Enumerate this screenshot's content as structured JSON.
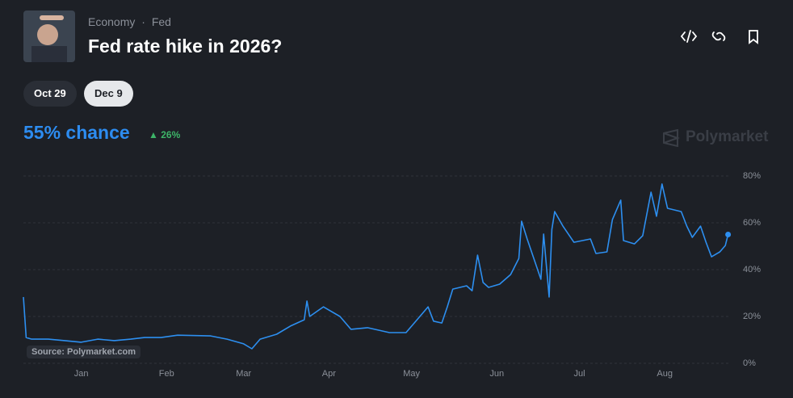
{
  "header": {
    "category": "Economy",
    "subcategory": "Fed",
    "title": "Fed rate hike in 2026?"
  },
  "tabs": [
    "Oct 29",
    "Dec 9"
  ],
  "headline": "55% chance",
  "change": "26%",
  "brand": "Polymarket",
  "source": "Source: Polymarket.com",
  "chart_data": {
    "type": "line",
    "color": "#2d8ff0",
    "x": [
      -21,
      -20,
      -18,
      -12,
      -6,
      0,
      6,
      12,
      18,
      23,
      29,
      35,
      47,
      53,
      59,
      62,
      65,
      71,
      76,
      81,
      82,
      83,
      88,
      94,
      98,
      104,
      112,
      118,
      122,
      126,
      128,
      131,
      133,
      135,
      140,
      142,
      144,
      146,
      148,
      152,
      156,
      159,
      160,
      162,
      165,
      167,
      168,
      170,
      171,
      172,
      175,
      179,
      185,
      187,
      191,
      193,
      196,
      197,
      201,
      204,
      207,
      209,
      211,
      213,
      218,
      220,
      222,
      225,
      227,
      229,
      232,
      234,
      235
    ],
    "values": [
      28.3,
      11,
      10.3,
      10.3,
      9.7,
      9,
      10.3,
      9.7,
      10.3,
      11,
      11,
      12,
      11.7,
      10.3,
      8.3,
      6.2,
      10.3,
      12.4,
      15.9,
      18.6,
      26.6,
      20,
      24.1,
      20,
      14.5,
      15.2,
      13.1,
      13.1,
      18.6,
      24.1,
      18,
      17.2,
      24.1,
      31.7,
      33.1,
      31,
      46.2,
      34.5,
      32.4,
      33.8,
      37.9,
      44.8,
      60.7,
      53.1,
      42.8,
      35.9,
      55.2,
      28.3,
      57.2,
      64.8,
      58.6,
      51.7,
      53.1,
      46.9,
      47.6,
      61.4,
      69.7,
      52.4,
      51,
      54.5,
      73.1,
      62.8,
      76.6,
      66.2,
      64.8,
      58.6,
      53.8,
      58.6,
      51.7,
      45.5,
      47.6,
      50.3,
      55
    ],
    "xlim": [
      -21,
      236
    ],
    "xticks": [
      {
        "value": 0,
        "label": "Jan"
      },
      {
        "value": 31,
        "label": "Feb"
      },
      {
        "value": 59,
        "label": "Mar"
      },
      {
        "value": 90,
        "label": "Apr"
      },
      {
        "value": 120,
        "label": "May"
      },
      {
        "value": 151,
        "label": "Jun"
      },
      {
        "value": 181,
        "label": "Jul"
      },
      {
        "value": 212,
        "label": "Aug"
      }
    ],
    "ylim": [
      0,
      80
    ],
    "yticks": [
      {
        "value": 0,
        "label": "0%"
      },
      {
        "value": 20,
        "label": "20%"
      },
      {
        "value": 40,
        "label": "40%"
      },
      {
        "value": 60,
        "label": "60%"
      },
      {
        "value": 80,
        "label": "80%"
      }
    ],
    "grid": true
  }
}
